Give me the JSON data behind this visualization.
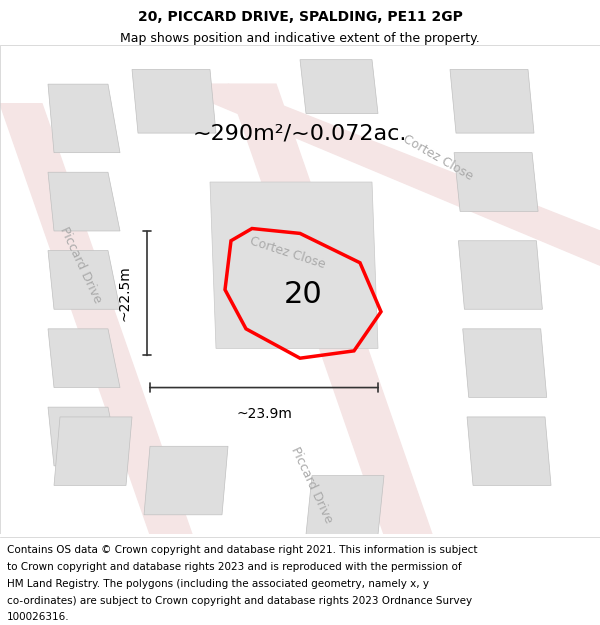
{
  "title": "20, PICCARD DRIVE, SPALDING, PE11 2GP",
  "subtitle": "Map shows position and indicative extent of the property.",
  "area_text": "~290m²/~0.072ac.",
  "number_label": "20",
  "dim_vertical": "~22.5m",
  "dim_horizontal": "~23.9m",
  "footer_lines": [
    "Contains OS data © Crown copyright and database right 2021. This information is subject",
    "to Crown copyright and database rights 2023 and is reproduced with the permission of",
    "HM Land Registry. The polygons (including the associated geometry, namely x, y",
    "co-ordinates) are subject to Crown copyright and database rights 2023 Ordnance Survey",
    "100026316."
  ],
  "map_bg": "#f0eeec",
  "highlight_color": "#ff0000",
  "highlight_linewidth": 2.5,
  "title_fontsize": 10,
  "subtitle_fontsize": 9,
  "footer_fontsize": 7.5,
  "label_fontsize": 22,
  "area_fontsize": 16,
  "dim_fontsize": 10,
  "street_label_color": "#aaaaaa",
  "street_label_fontsize": 9,
  "road_color": "#f5e5e5",
  "road_edge": "#e8c0c0",
  "bldg_color": "#dedede",
  "bldg_edge": "#c0c0c0"
}
